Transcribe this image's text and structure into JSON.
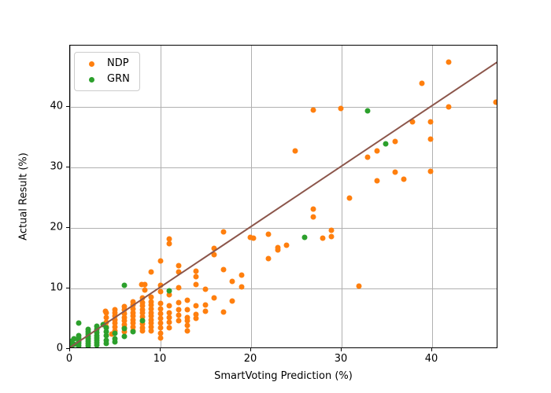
{
  "figure": {
    "background": "#ffffff",
    "grid_color": "#b0b0b0",
    "spine_color": "#000000"
  },
  "chart_data": {
    "type": "scatter",
    "title": "",
    "xlabel": "SmartVoting Prediction (%)",
    "ylabel": "Actual Result (%)",
    "xlim": [
      0,
      47.3
    ],
    "ylim": [
      0,
      50.1
    ],
    "x_ticks": [
      0,
      10,
      20,
      30,
      40
    ],
    "y_ticks": [
      0,
      10,
      20,
      30,
      40
    ],
    "grid": true,
    "legend_position": "upper left",
    "reference_line": {
      "name": "identity-line",
      "from": [
        0,
        0
      ],
      "to": [
        47.3,
        47.3
      ],
      "color": "#8c564b",
      "width": 2
    },
    "series": [
      {
        "name": "NDP",
        "color": "#ff7f0e",
        "points": [
          [
            4,
            3.4
          ],
          [
            4,
            4.2
          ],
          [
            4,
            5.0
          ],
          [
            4,
            5.7
          ],
          [
            3.9,
            6.0
          ],
          [
            4.6,
            2.2
          ],
          [
            5,
            2.8
          ],
          [
            5,
            3.4
          ],
          [
            5,
            4.0
          ],
          [
            5,
            4.6
          ],
          [
            5,
            5.2
          ],
          [
            5,
            5.8
          ],
          [
            5,
            6.2
          ],
          [
            6,
            2.6
          ],
          [
            6,
            3.2
          ],
          [
            6,
            3.8
          ],
          [
            6,
            4.4
          ],
          [
            6,
            5.0
          ],
          [
            6,
            5.6
          ],
          [
            6,
            6.2
          ],
          [
            6,
            6.8
          ],
          [
            7,
            2.8
          ],
          [
            7,
            3.4
          ],
          [
            7,
            4.0
          ],
          [
            7,
            4.6
          ],
          [
            7,
            5.2
          ],
          [
            7,
            5.8
          ],
          [
            7,
            6.4
          ],
          [
            7,
            7.0
          ],
          [
            7,
            7.6
          ],
          [
            8,
            2.7
          ],
          [
            8,
            3.3
          ],
          [
            8,
            3.9
          ],
          [
            8,
            4.5
          ],
          [
            8,
            5.1
          ],
          [
            8,
            5.7
          ],
          [
            8,
            6.3
          ],
          [
            8,
            6.9
          ],
          [
            8,
            7.5
          ],
          [
            8,
            8.2
          ],
          [
            7.9,
            10.4
          ],
          [
            8.3,
            10.4
          ],
          [
            8.3,
            9.5
          ],
          [
            9,
            2.8
          ],
          [
            9,
            3.4
          ],
          [
            9,
            4.0
          ],
          [
            9,
            4.6
          ],
          [
            9,
            5.2
          ],
          [
            9,
            5.8
          ],
          [
            9,
            6.4
          ],
          [
            9,
            7.0
          ],
          [
            9,
            7.6
          ],
          [
            9,
            8.3
          ],
          [
            9,
            12.5
          ],
          [
            10,
            1.6
          ],
          [
            10,
            2.4
          ],
          [
            10,
            3.2
          ],
          [
            10,
            4.0
          ],
          [
            10,
            4.8
          ],
          [
            10,
            5.6
          ],
          [
            10,
            6.4
          ],
          [
            10,
            7.3
          ],
          [
            10,
            9.2
          ],
          [
            10,
            10.3
          ],
          [
            10,
            14.3
          ],
          [
            11,
            3.2
          ],
          [
            11,
            4.2
          ],
          [
            11,
            5.0
          ],
          [
            11,
            5.8
          ],
          [
            11,
            6.9
          ],
          [
            11,
            8.8
          ],
          [
            11,
            17.2
          ],
          [
            11,
            18.0
          ],
          [
            12,
            4.5
          ],
          [
            12,
            5.4
          ],
          [
            12,
            6.3
          ],
          [
            12,
            7.4
          ],
          [
            12,
            9.9
          ],
          [
            12,
            12.5
          ],
          [
            12,
            13.6
          ],
          [
            13,
            2.8
          ],
          [
            13,
            3.6
          ],
          [
            13,
            4.4
          ],
          [
            13,
            5.0
          ],
          [
            13,
            6.2
          ],
          [
            13,
            7.8
          ],
          [
            14,
            4.8
          ],
          [
            14,
            5.5
          ],
          [
            14,
            6.9
          ],
          [
            14,
            10.4
          ],
          [
            14,
            11.7
          ],
          [
            14,
            12.7
          ],
          [
            15,
            6.0
          ],
          [
            15,
            7.1
          ],
          [
            15,
            9.6
          ],
          [
            16,
            8.2
          ],
          [
            16,
            15.4
          ],
          [
            16,
            16.4
          ],
          [
            17,
            5.9
          ],
          [
            17,
            12.9
          ],
          [
            17,
            19.2
          ],
          [
            18,
            7.7
          ],
          [
            18,
            11.0
          ],
          [
            19,
            10.0
          ],
          [
            19,
            12.0
          ],
          [
            20,
            18.3
          ],
          [
            20.3,
            18.2
          ],
          [
            22,
            14.8
          ],
          [
            22,
            18.8
          ],
          [
            23,
            16.2
          ],
          [
            23,
            16.6
          ],
          [
            24,
            17.0
          ],
          [
            25,
            32.6
          ],
          [
            27,
            21.7
          ],
          [
            27,
            23.0
          ],
          [
            27,
            39.4
          ],
          [
            28,
            18.2
          ],
          [
            29,
            18.4
          ],
          [
            29,
            19.5
          ],
          [
            30,
            39.7
          ],
          [
            31,
            24.8
          ],
          [
            32,
            10.2
          ],
          [
            33,
            31.6
          ],
          [
            34,
            27.7
          ],
          [
            34,
            32.6
          ],
          [
            36,
            29.1
          ],
          [
            36,
            34.2
          ],
          [
            37,
            27.9
          ],
          [
            38,
            37.5
          ],
          [
            39,
            43.9
          ],
          [
            40,
            29.2
          ],
          [
            40,
            34.6
          ],
          [
            40,
            37.5
          ],
          [
            42,
            39.9
          ],
          [
            42,
            47.3
          ],
          [
            47.2,
            40.7
          ]
        ]
      },
      {
        "name": "GRN",
        "color": "#2ca02c",
        "points": [
          [
            0.2,
            0.3
          ],
          [
            0.2,
            0.7
          ],
          [
            0.2,
            1.1
          ],
          [
            0.4,
            0.5
          ],
          [
            0.4,
            1.4
          ],
          [
            1,
            0.3
          ],
          [
            1,
            0.6
          ],
          [
            1,
            0.9
          ],
          [
            1,
            1.2
          ],
          [
            1,
            1.6
          ],
          [
            1,
            2.0
          ],
          [
            1,
            4.0
          ],
          [
            2,
            0.3
          ],
          [
            2,
            0.7
          ],
          [
            2,
            1.0
          ],
          [
            2,
            1.4
          ],
          [
            2,
            1.8
          ],
          [
            2,
            2.2
          ],
          [
            2,
            2.6
          ],
          [
            2,
            3.0
          ],
          [
            3,
            0.4
          ],
          [
            3,
            0.8
          ],
          [
            3,
            1.2
          ],
          [
            3,
            1.6
          ],
          [
            3,
            2.0
          ],
          [
            3,
            2.5
          ],
          [
            3,
            3.0
          ],
          [
            3,
            3.5
          ],
          [
            4,
            0.6
          ],
          [
            4,
            1.2
          ],
          [
            4,
            1.9
          ],
          [
            4,
            2.6
          ],
          [
            4,
            3.3
          ],
          [
            3.7,
            3.8
          ],
          [
            5,
            0.9
          ],
          [
            5,
            1.5
          ],
          [
            5,
            2.3
          ],
          [
            6,
            1.8
          ],
          [
            6,
            3.1
          ],
          [
            6,
            10.3
          ],
          [
            7,
            2.6
          ],
          [
            8,
            4.5
          ],
          [
            11,
            9.4
          ],
          [
            26,
            18.3
          ],
          [
            33,
            39.3
          ],
          [
            35,
            33.8
          ]
        ]
      }
    ]
  }
}
